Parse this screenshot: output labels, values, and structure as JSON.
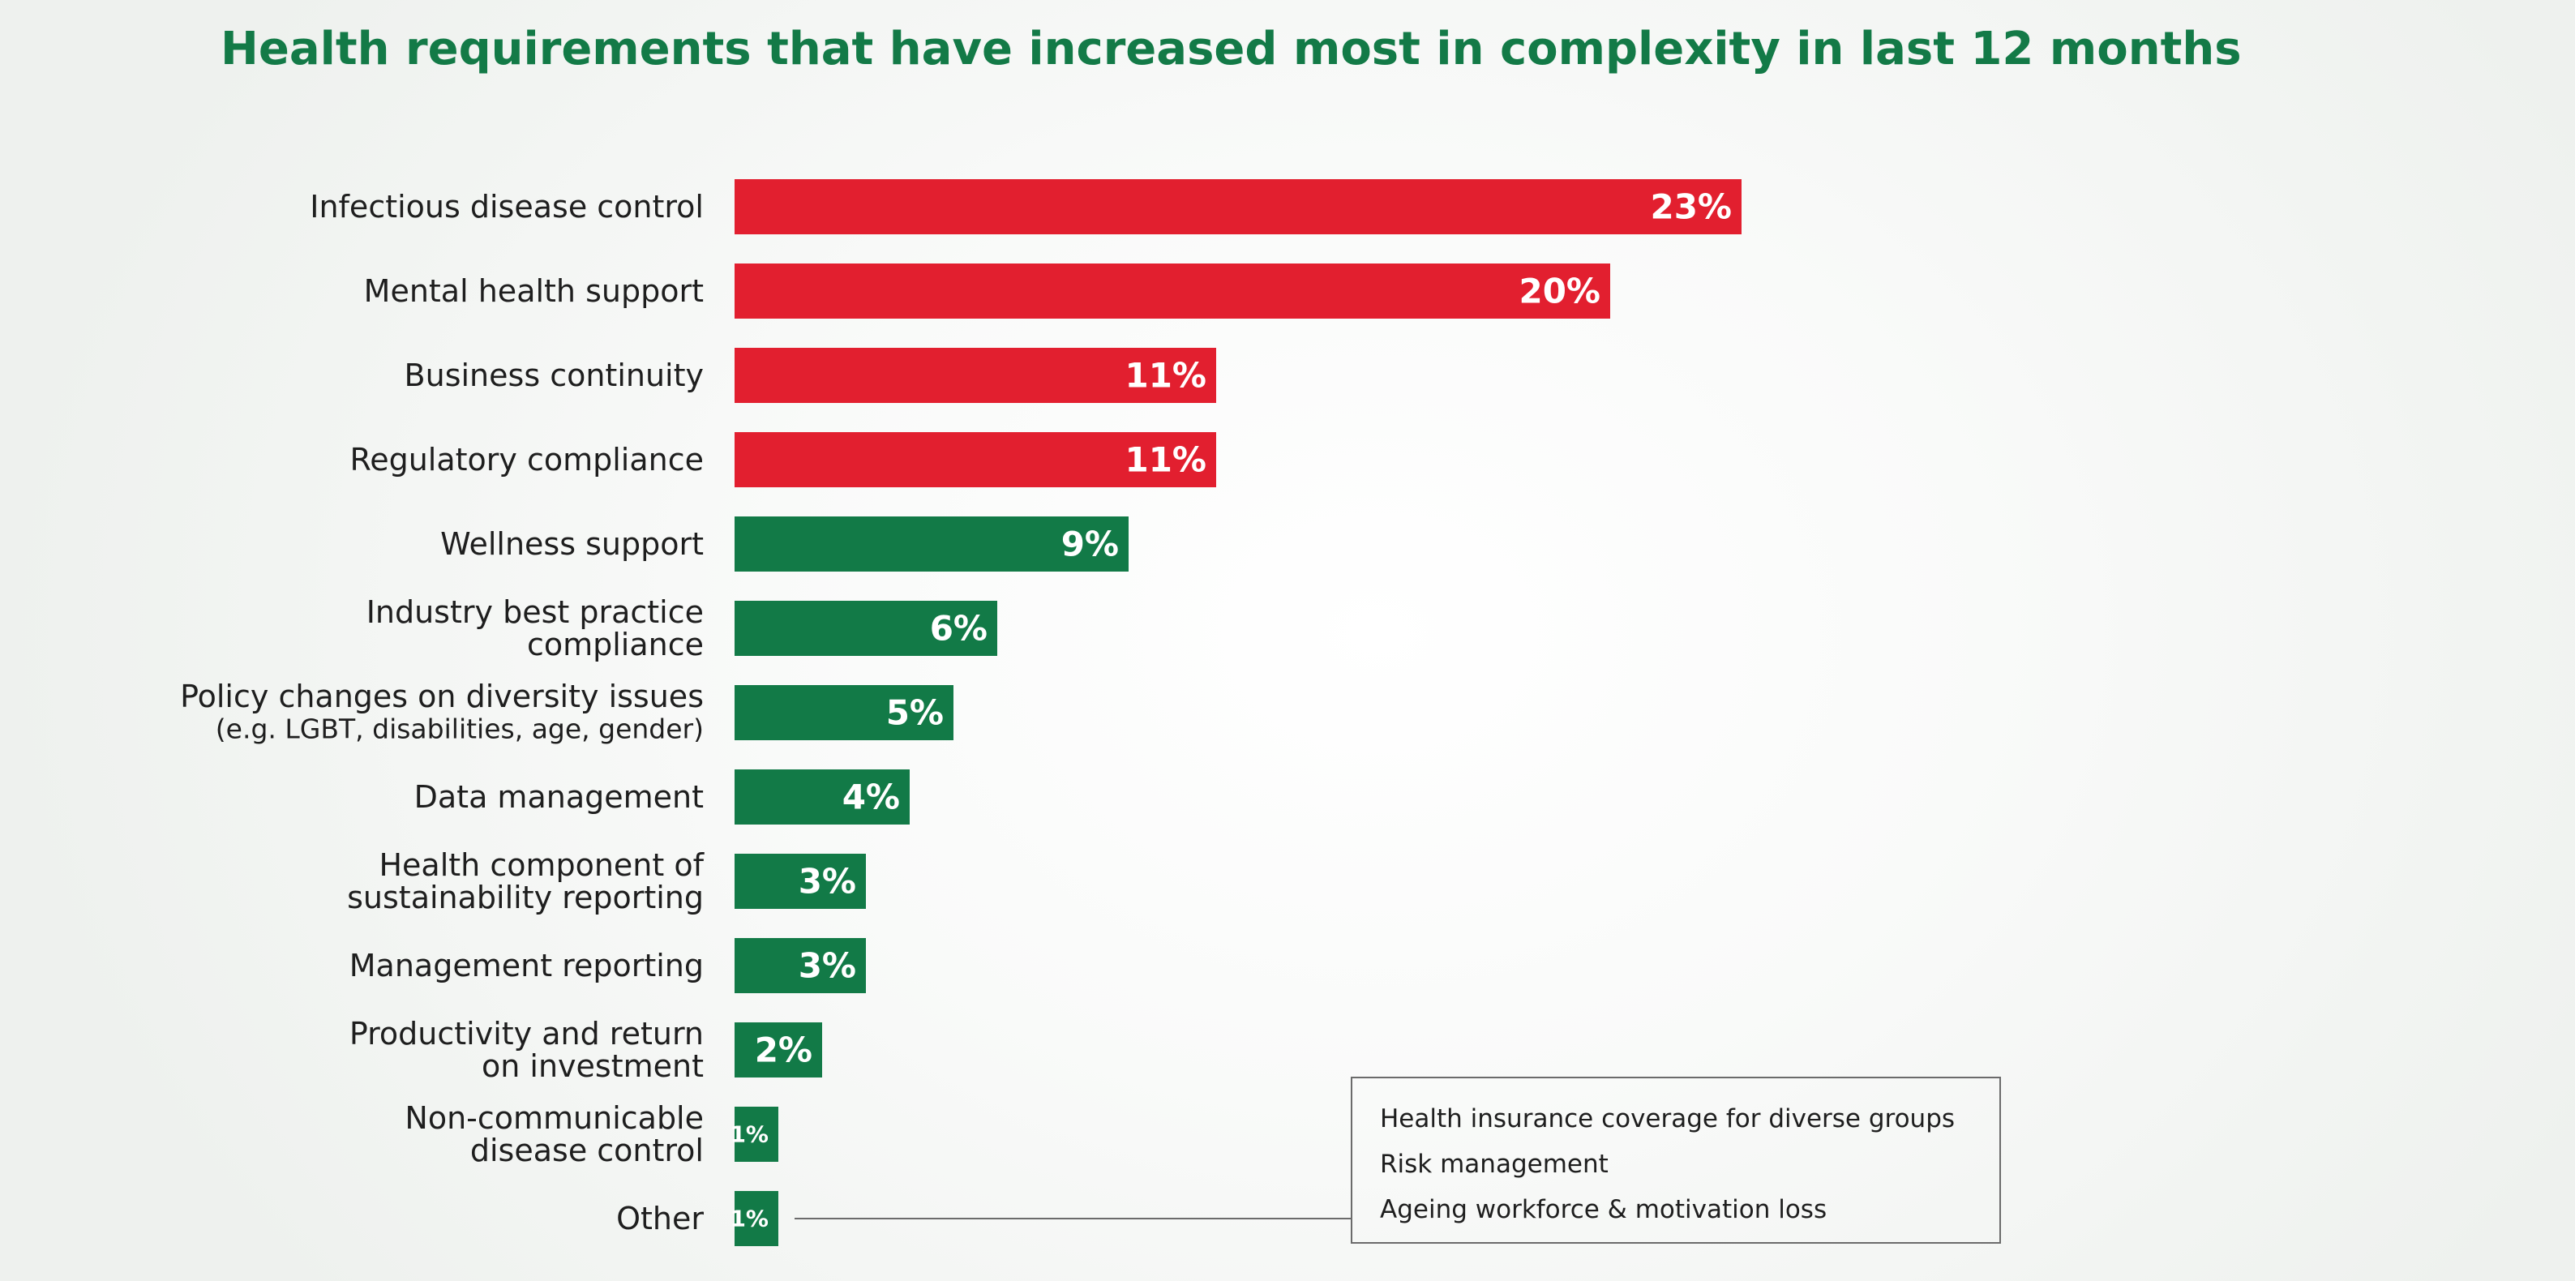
{
  "chart_data": {
    "type": "bar",
    "orientation": "horizontal",
    "title": "Health requirements that have increased most in complexity in last 12 months",
    "categories": [
      [
        "Infectious disease control"
      ],
      [
        "Mental health support"
      ],
      [
        "Business continuity"
      ],
      [
        "Regulatory compliance"
      ],
      [
        "Wellness support"
      ],
      [
        "Industry best practice",
        "compliance"
      ],
      [
        "Policy changes on diversity issues",
        "(e.g. LGBT, disabilities, age, gender)"
      ],
      [
        "Data management"
      ],
      [
        "Health component of",
        "sustainability reporting"
      ],
      [
        "Management reporting"
      ],
      [
        "Productivity and return",
        "on investment"
      ],
      [
        "Non-communicable",
        "disease control"
      ],
      [
        "Other"
      ]
    ],
    "values": [
      23,
      20,
      11,
      11,
      9,
      6,
      5,
      4,
      3,
      3,
      2,
      1,
      1
    ],
    "value_labels": [
      "23%",
      "20%",
      "11%",
      "11%",
      "9%",
      "6%",
      "5%",
      "4%",
      "3%",
      "3%",
      "2%",
      "1%",
      "1%"
    ],
    "highlight_count": 4,
    "colors": {
      "highlight": "#e21f2f",
      "normal": "#127a47",
      "title": "#137a47"
    },
    "other_breakdown": [
      "Health insurance coverage for diverse groups",
      "Risk management",
      "Ageing workforce & motivation loss"
    ],
    "xlabel": "",
    "ylabel": "",
    "grid": false
  }
}
